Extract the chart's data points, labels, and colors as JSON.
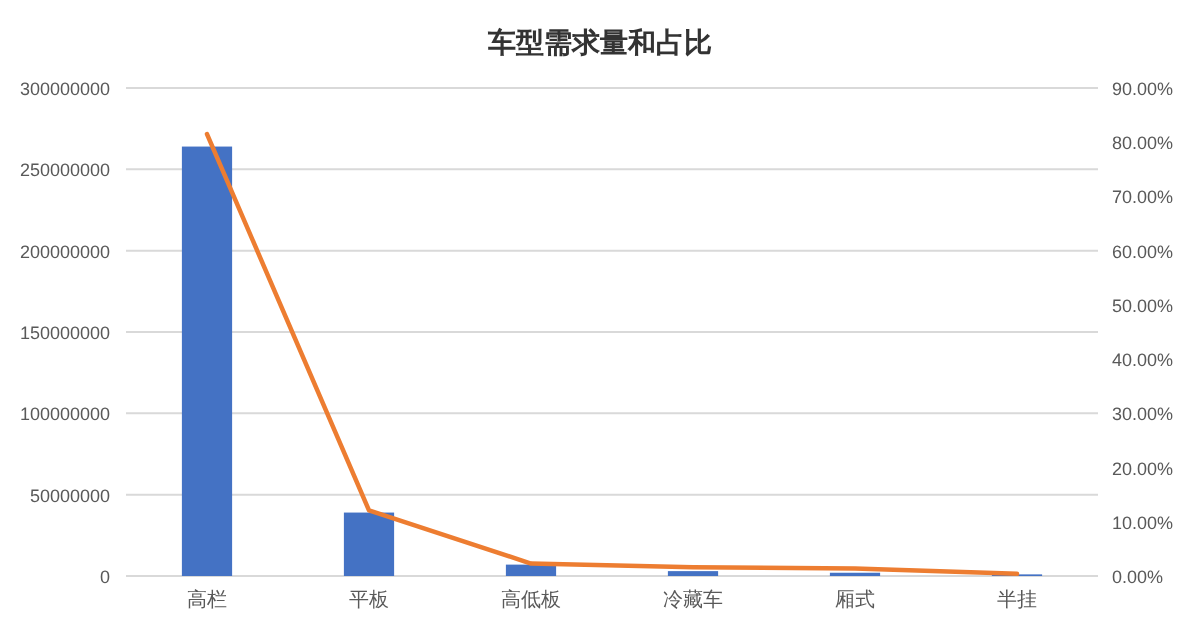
{
  "chart_data": {
    "type": "bar",
    "title": "车型需求量和占比",
    "categories": [
      "高栏",
      "平板",
      "高低板",
      "冷藏车",
      "厢式",
      "半挂"
    ],
    "series": [
      {
        "color": "#4472c4",
        "values": [
          264000000,
          39000000,
          7000000,
          3000000,
          2000000,
          1000000
        ]
      },
      {
        "type": "line",
        "axis": "y2",
        "color": "#ed7d31",
        "values": [
          81.5,
          12.1,
          2.3,
          1.6,
          1.4,
          0.4
        ]
      }
    ],
    "ylim": [
      0,
      300000000
    ],
    "yticks": [
      0,
      50000000,
      100000000,
      150000000,
      200000000,
      250000000,
      300000000
    ],
    "y2lim": [
      0,
      90
    ],
    "y2ticks": [
      {
        "value": 0,
        "label": "0.00%"
      },
      {
        "value": 10,
        "label": "10.00%"
      },
      {
        "value": 20,
        "label": "20.00%"
      },
      {
        "value": 30,
        "label": "30.00%"
      },
      {
        "value": 40,
        "label": "40.00%"
      },
      {
        "value": 50,
        "label": "50.00%"
      },
      {
        "value": 60,
        "label": "60.00%"
      },
      {
        "value": 70,
        "label": "70.00%"
      },
      {
        "value": 80,
        "label": "80.00%"
      },
      {
        "value": 90,
        "label": "90.00%"
      }
    ],
    "grid": "y"
  }
}
